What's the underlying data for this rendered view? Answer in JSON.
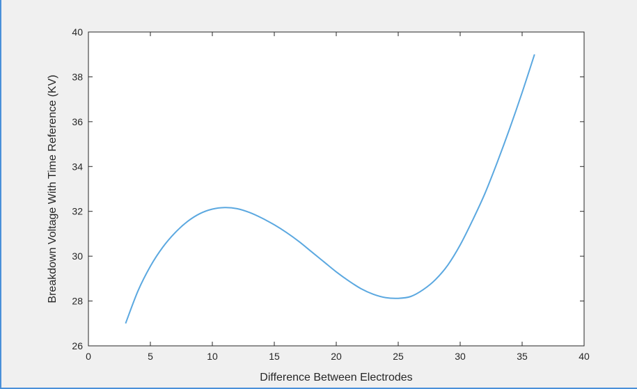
{
  "chart_data": {
    "type": "line",
    "title": "",
    "xlabel": "Difference Between Electrodes",
    "ylabel": "Breakdown Voltage With Time Reference (KV)",
    "xlim": [
      0,
      40
    ],
    "ylim": [
      26,
      40
    ],
    "xticks": [
      0,
      5,
      10,
      15,
      20,
      25,
      30,
      35,
      40
    ],
    "yticks": [
      26,
      28,
      30,
      32,
      34,
      36,
      38,
      40
    ],
    "grid": false,
    "legend": "none",
    "series": [
      {
        "color": "#5ba8e0",
        "x": [
          3,
          4,
          5,
          6,
          7,
          8,
          9,
          10,
          11,
          12,
          13,
          14,
          15,
          16,
          17,
          18,
          19,
          20,
          21,
          22,
          23,
          24,
          25,
          26,
          27,
          28,
          29,
          30,
          31,
          32,
          33,
          34,
          35,
          36
        ],
        "y": [
          27.0,
          28.45,
          29.55,
          30.4,
          31.05,
          31.55,
          31.9,
          32.1,
          32.17,
          32.12,
          31.95,
          31.7,
          31.4,
          31.05,
          30.65,
          30.2,
          29.75,
          29.3,
          28.9,
          28.55,
          28.3,
          28.15,
          28.12,
          28.2,
          28.5,
          28.95,
          29.6,
          30.5,
          31.6,
          32.8,
          34.2,
          35.7,
          37.3,
          39.0
        ]
      }
    ]
  }
}
